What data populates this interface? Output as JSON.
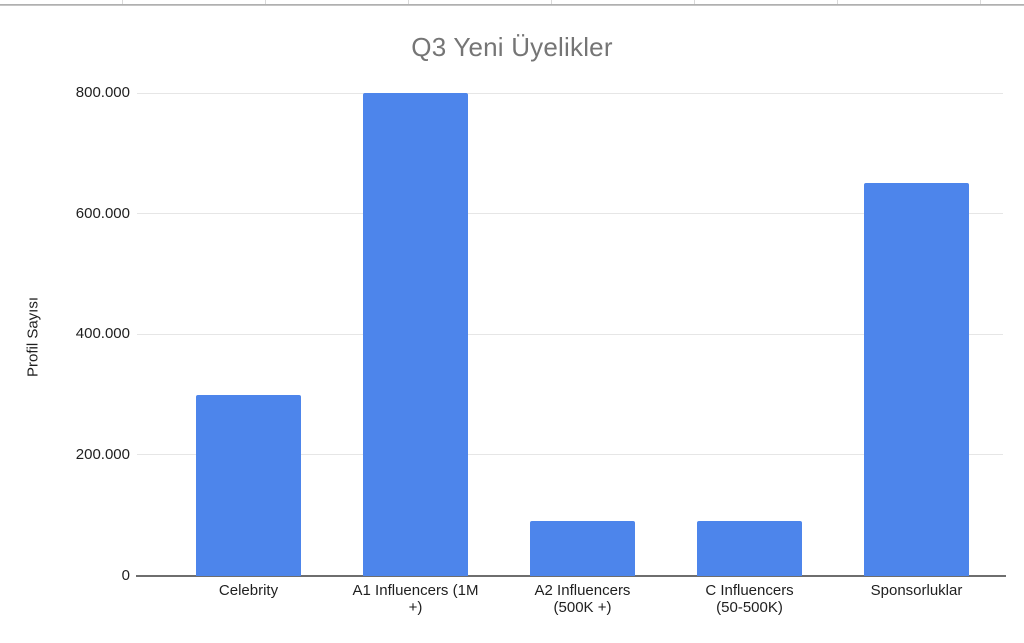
{
  "spreadsheet_strip": {
    "cell_border_color": "#d9d9d9",
    "edge_border_color": "#a6a6a6"
  },
  "chart_data": {
    "type": "bar",
    "title": "Q3 Yeni Üyelikler",
    "xlabel": "",
    "ylabel": "Profil Sayısı",
    "categories": [
      "Celebrity",
      "A1 Influencers (1M +)",
      "A2 Influencers (500K +)",
      "C Influencers (50-500K)",
      "Sponsorluklar"
    ],
    "category_display_lines": [
      [
        "Celebrity"
      ],
      [
        "A1 Influencers (1M",
        "+)"
      ],
      [
        "A2 Influencers",
        "(500K +)"
      ],
      [
        "C Influencers",
        "(50-500K)"
      ],
      [
        "Sponsorluklar"
      ]
    ],
    "values": [
      300000,
      800000,
      90000,
      90000,
      650000
    ],
    "ylim": [
      0,
      800000
    ],
    "ytick_values": [
      0,
      200000,
      400000,
      600000,
      800000
    ],
    "ytick_labels": [
      "0",
      "200.000",
      "400.000",
      "600.000",
      "800.000"
    ],
    "grid": true,
    "legend_position": "none",
    "bar_color": "#4d85eb",
    "title_color": "#757575",
    "axis_text_color": "#1f1f1f",
    "gridline_color": "#e6e6e6",
    "baseline_color": "#6e6e6e"
  }
}
